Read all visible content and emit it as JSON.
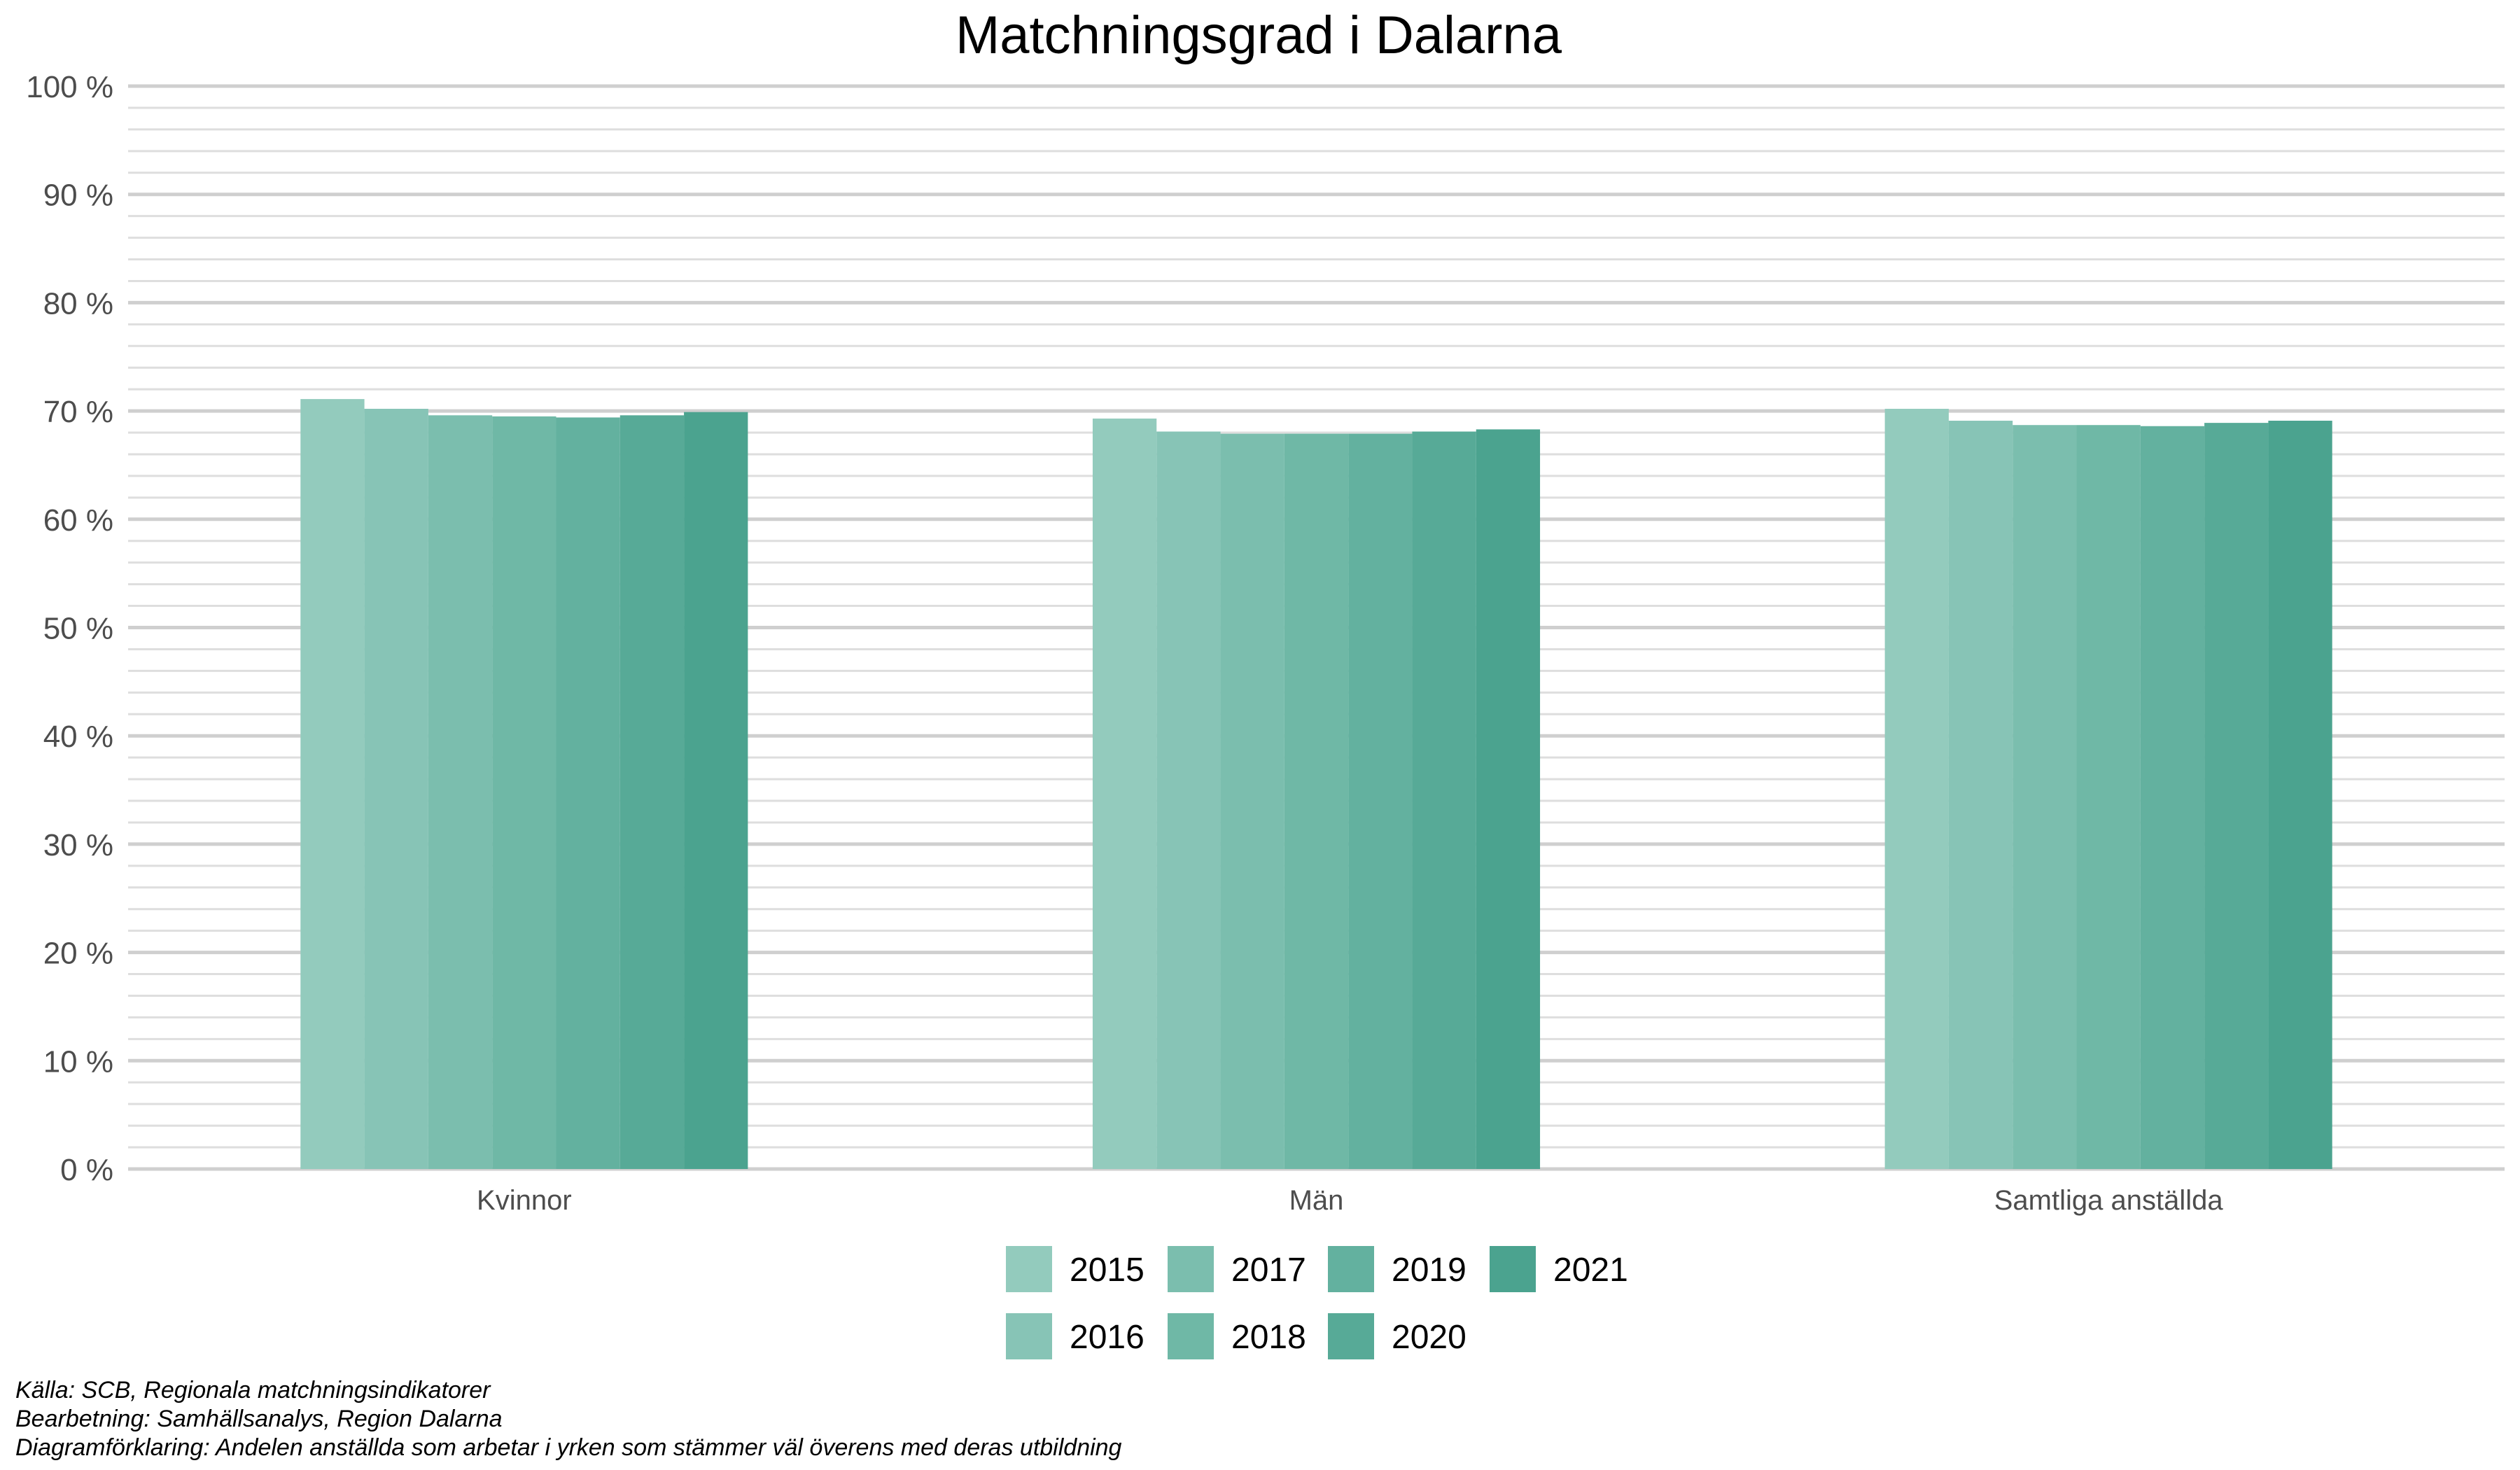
{
  "chart_data": {
    "type": "bar",
    "title": "Matchningsgrad i Dalarna",
    "xlabel": "",
    "ylabel": "",
    "ylim": [
      0,
      100
    ],
    "y_tick_values": [
      0,
      10,
      20,
      30,
      40,
      50,
      60,
      70,
      80,
      90,
      100
    ],
    "y_tick_labels": [
      "0 %",
      "10 %",
      "20 %",
      "30 %",
      "40 %",
      "50 %",
      "60 %",
      "70 %",
      "80 %",
      "90 %",
      "100 %"
    ],
    "grid": true,
    "legend_position": "bottom",
    "categories": [
      "Kvinnor",
      "Män",
      "Samtliga anställda"
    ],
    "series": [
      {
        "name": "2015",
        "color": "#93cbbd",
        "values": [
          71.1,
          69.3,
          70.2
        ]
      },
      {
        "name": "2016",
        "color": "#87c4b6",
        "values": [
          70.2,
          68.1,
          69.1
        ]
      },
      {
        "name": "2017",
        "color": "#7bbeae",
        "values": [
          69.6,
          67.9,
          68.7
        ]
      },
      {
        "name": "2018",
        "color": "#6fb8a6",
        "values": [
          69.5,
          67.9,
          68.7
        ]
      },
      {
        "name": "2019",
        "color": "#63b19f",
        "values": [
          69.4,
          67.9,
          68.6
        ]
      },
      {
        "name": "2020",
        "color": "#57aa97",
        "values": [
          69.6,
          68.1,
          68.9
        ]
      },
      {
        "name": "2021",
        "color": "#4ba38f",
        "values": [
          69.9,
          68.3,
          69.1
        ]
      }
    ]
  },
  "captions": [
    "Källa: SCB, Regionala matchningsindikatorer",
    "Bearbetning: Samhällsanalys, Region Dalarna",
    "Diagramförklaring: Andelen anställda som arbetar i yrken som stämmer väl överens med deras utbildning"
  ]
}
